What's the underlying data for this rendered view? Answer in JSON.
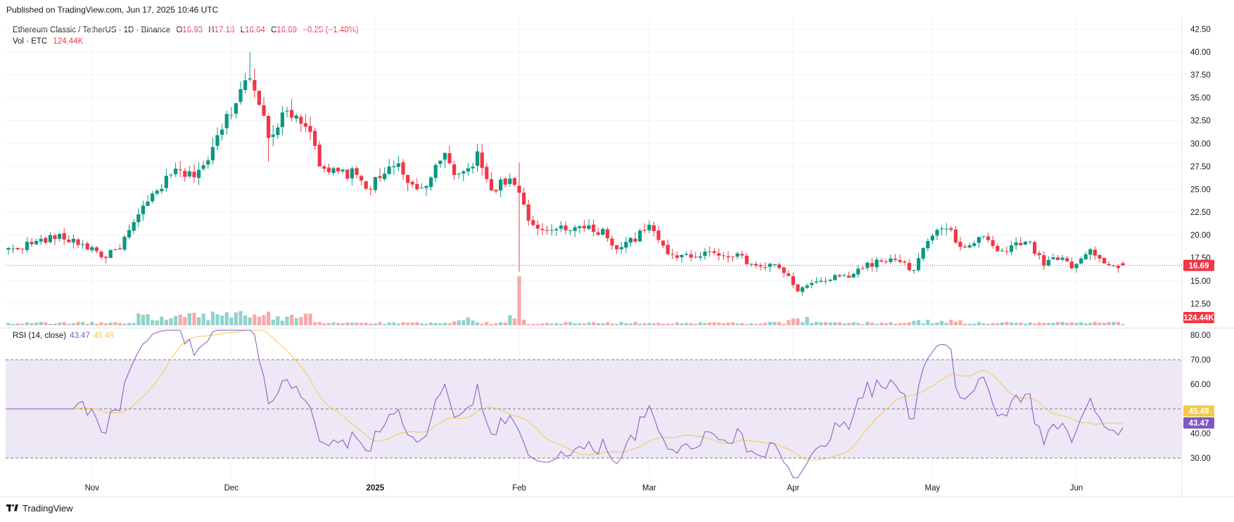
{
  "header": {
    "published": "Published on TradingView.com, Jun 17, 2025 10:46 UTC"
  },
  "legend": {
    "symbol": "Ethereum Classic / TetherUS · 1D · Binance",
    "o_label": "O",
    "o_value": "16.93",
    "h_label": "H",
    "h_value": "17.18",
    "l_label": "L",
    "l_value": "16.64",
    "c_label": "C",
    "c_value": "16.69",
    "change": "−0.25 (−1.48%)",
    "vol_label": "Vol · ETC",
    "vol_value": "124.44K"
  },
  "rsi_legend": {
    "label": "RSI (14, close)",
    "rsi_value": "43.47",
    "ma_value": "45.49"
  },
  "footer": {
    "brand": "TradingView"
  },
  "colors": {
    "up": "#089981",
    "down": "#f23645",
    "vol_up": "#92d2cc",
    "vol_down": "#f7a9a7",
    "rsi": "#7e57c2",
    "rsi_ma": "#f2c94c",
    "rsi_band": "#ede7f6",
    "grid": "#f0f3fa"
  },
  "chart_data": {
    "type": "candlestick",
    "price_axis": {
      "ylim": [
        10,
        43.75
      ],
      "ticks": [
        "12.50",
        "15.00",
        "17.50",
        "20.00",
        "22.50",
        "25.00",
        "27.50",
        "30.00",
        "32.50",
        "35.00",
        "37.50",
        "40.00",
        "42.50"
      ]
    },
    "rsi_axis": {
      "ylim": [
        22,
        82
      ],
      "ticks": [
        "30.00",
        "40.00",
        "50.00",
        "60.00",
        "70.00",
        "80.00"
      ],
      "bands": [
        30,
        50,
        70
      ]
    },
    "time_axis": {
      "labels": [
        "Nov",
        "Dec",
        "2025",
        "Feb",
        "Mar",
        "Apr",
        "May",
        "Jun"
      ],
      "label_days": [
        18,
        48,
        79,
        110,
        138,
        169,
        199,
        230
      ]
    },
    "last_price": {
      "value": 16.69,
      "label": "16.69"
    },
    "last_volume": {
      "label": "124.44K"
    },
    "rsi_tags": {
      "rsi": "43.47",
      "ma": "45.49"
    },
    "ohlc_anchors": {
      "close": [
        [
          0,
          18.4
        ],
        [
          10,
          19.8
        ],
        [
          14,
          19.4
        ],
        [
          18,
          18.5
        ],
        [
          21,
          17.6
        ],
        [
          24,
          18.8
        ],
        [
          28,
          22.0
        ],
        [
          31,
          24.3
        ],
        [
          36,
          27.0
        ],
        [
          39,
          26.4
        ],
        [
          43,
          28.2
        ],
        [
          47,
          32.8
        ],
        [
          50,
          35.8
        ],
        [
          52,
          37.8
        ],
        [
          54,
          35.0
        ],
        [
          56,
          30.0
        ],
        [
          59,
          33.5
        ],
        [
          62,
          33.4
        ],
        [
          65,
          31.5
        ],
        [
          67,
          27.0
        ],
        [
          70,
          26.8
        ],
        [
          74,
          26.7
        ],
        [
          78,
          25.2
        ],
        [
          83,
          28.1
        ],
        [
          86,
          25.5
        ],
        [
          89,
          25.0
        ],
        [
          94,
          28.5
        ],
        [
          97,
          26.2
        ],
        [
          101,
          28.6
        ],
        [
          104,
          25.0
        ],
        [
          108,
          26.3
        ],
        [
          110,
          24.3
        ],
        [
          112,
          21.5
        ],
        [
          114,
          20.3
        ],
        [
          119,
          21.0
        ],
        [
          124,
          20.7
        ],
        [
          128,
          20.4
        ],
        [
          131,
          18.6
        ],
        [
          133,
          19.0
        ],
        [
          138,
          20.8
        ],
        [
          142,
          18.2
        ],
        [
          145,
          17.6
        ],
        [
          150,
          18.1
        ],
        [
          156,
          17.9
        ],
        [
          161,
          16.6
        ],
        [
          166,
          16.6
        ],
        [
          170,
          14.0
        ],
        [
          175,
          15.0
        ],
        [
          181,
          15.6
        ],
        [
          185,
          16.8
        ],
        [
          190,
          17.3
        ],
        [
          195,
          16.2
        ],
        [
          197,
          18.4
        ],
        [
          199,
          20.0
        ],
        [
          202,
          20.7
        ],
        [
          206,
          18.4
        ],
        [
          210,
          19.9
        ],
        [
          214,
          18.0
        ],
        [
          219,
          19.5
        ],
        [
          223,
          17.0
        ],
        [
          227,
          17.8
        ],
        [
          229,
          16.6
        ],
        [
          233,
          18.4
        ],
        [
          236,
          16.7
        ],
        [
          240,
          16.69
        ]
      ]
    },
    "volume_units": "thousands",
    "volume_base": 1.1
  }
}
